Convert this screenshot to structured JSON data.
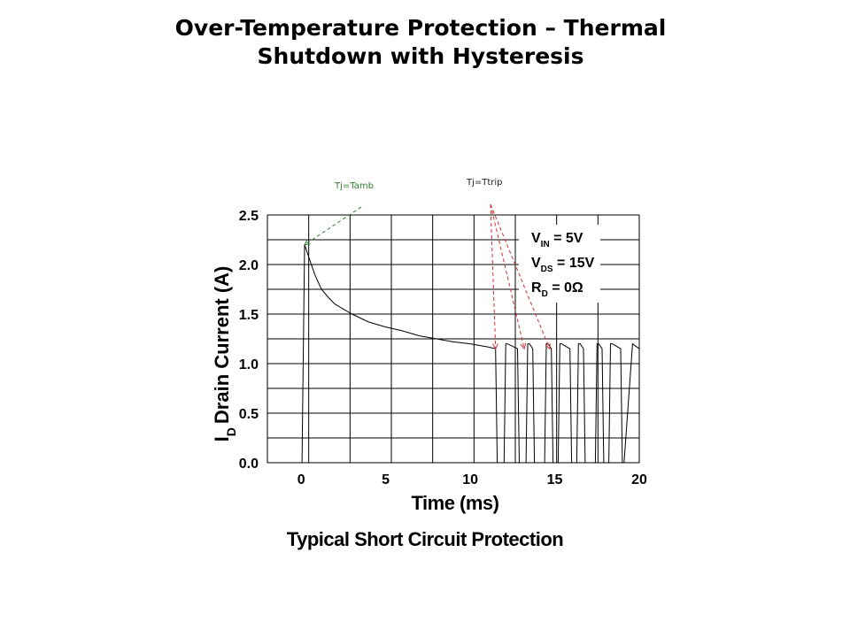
{
  "slide": {
    "title_line1": "Over-Temperature Protection – Thermal",
    "title_line2": "Shutdown with Hysteresis"
  },
  "chart_data": {
    "type": "line",
    "title": "",
    "xlabel": "Time (ms)",
    "ylabel_main": "I",
    "ylabel_sub": "D",
    "ylabel_rest": "Drain Current (A)",
    "caption": "Typical Short Circuit Protection",
    "xlim": [
      -2,
      20
    ],
    "ylim": [
      0,
      2.5
    ],
    "x_ticks": [
      0,
      5,
      10,
      15,
      20
    ],
    "y_ticks": [
      0.0,
      0.5,
      1.0,
      1.5,
      2.0,
      2.5
    ],
    "x_tick_labels": [
      "0",
      "5",
      "10",
      "15",
      "20"
    ],
    "y_tick_labels": [
      "0.0",
      "0.5",
      "1.0",
      "1.5",
      "2.0",
      "2.5"
    ],
    "grid": true,
    "line_color": "#000000",
    "series": [
      {
        "x": [
          -2,
          0,
          0.05,
          0.2,
          0.5,
          0.8,
          1.2,
          1.6,
          2.0,
          2.5,
          3.0,
          3.5,
          4.0,
          5.0,
          6.0,
          7.0,
          8.0,
          9.0,
          10.0,
          11.0,
          11.5,
          11.6,
          11.8,
          12.0,
          12.1,
          12.2,
          12.8,
          12.9,
          13.0,
          13.3,
          13.4,
          13.5,
          13.7,
          13.8,
          13.9,
          14.4,
          14.5,
          14.6,
          14.8,
          14.9,
          15.0,
          15.2,
          15.3,
          15.4,
          15.9,
          16.0,
          16.1,
          16.3,
          16.4,
          16.5,
          16.7,
          16.8,
          16.9,
          17.4,
          17.5,
          17.6,
          17.8,
          17.9,
          18.0,
          18.2,
          18.3,
          18.4,
          18.9,
          19.0,
          19.1,
          19.6,
          20.0
        ],
        "y": [
          0,
          0,
          0,
          2.2,
          2.05,
          1.9,
          1.75,
          1.67,
          1.6,
          1.55,
          1.5,
          1.46,
          1.42,
          1.37,
          1.33,
          1.28,
          1.25,
          1.22,
          1.2,
          1.17,
          1.15,
          0,
          0,
          0,
          1.2,
          1.2,
          1.15,
          0,
          0,
          0,
          1.2,
          1.2,
          1.15,
          0,
          0,
          0,
          1.2,
          1.2,
          1.15,
          0,
          0,
          0,
          1.2,
          1.2,
          1.15,
          0,
          0,
          0,
          1.2,
          1.2,
          1.15,
          0,
          0,
          0,
          1.2,
          1.2,
          1.15,
          0,
          0,
          0,
          1.2,
          1.2,
          1.15,
          0,
          0,
          1.2,
          1.15
        ]
      }
    ],
    "conditions": {
      "vin_main": "V",
      "vin_sub": "IN",
      "vin_rest": " = 5V",
      "vds_main": "V",
      "vds_sub": "DS",
      "vds_rest": " = 15V",
      "rd_main": "R",
      "rd_sub": "D",
      "rd_rest": " = 0Ω"
    },
    "annotations": [
      {
        "text": "Tj=Tamb",
        "color": "#2e7d2e",
        "target": {
          "x": 0.2,
          "y": 2.2
        }
      },
      {
        "text": "Tj=Ttrip",
        "color": "#d32f2f",
        "targets": [
          {
            "x": 11.5,
            "y": 1.15
          },
          {
            "x": 13.2,
            "y": 1.15
          },
          {
            "x": 14.7,
            "y": 1.15
          }
        ]
      }
    ]
  }
}
